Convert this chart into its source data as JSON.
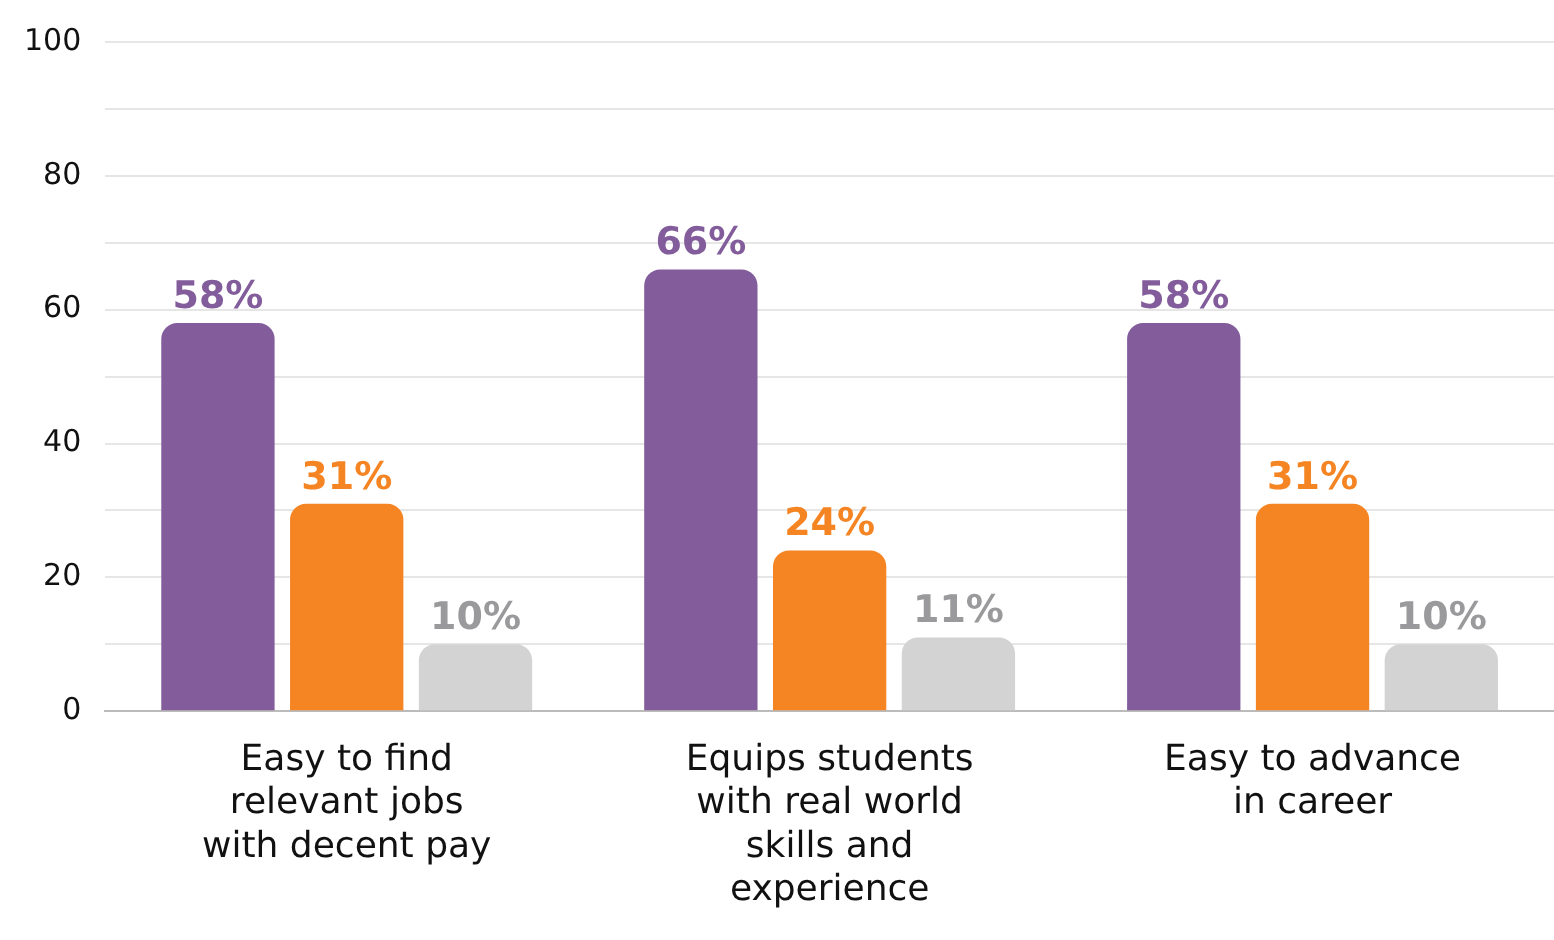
{
  "chart_data": {
    "type": "bar",
    "categories": [
      "Easy to find relevant jobs with decent pay",
      "Equips students with real world skills and experience",
      "Easy to advance in career"
    ],
    "series": [
      {
        "color": "#825c9b",
        "values": [
          58,
          66,
          58
        ],
        "value_labels": [
          "58%",
          "66%",
          "58%"
        ]
      },
      {
        "color": "#f58423",
        "values": [
          31,
          24,
          31
        ],
        "value_labels": [
          "31%",
          "24%",
          "31%"
        ]
      },
      {
        "color": "#d3d3d4",
        "values": [
          10,
          11,
          10
        ],
        "value_labels": [
          "10%",
          "11%",
          "10%"
        ]
      }
    ],
    "ylim": [
      0,
      100
    ],
    "yticks": [
      0,
      {
        "value": 10,
        "label": null
      },
      20,
      {
        "value": 30,
        "label": null
      },
      40,
      {
        "value": 50,
        "label": null
      },
      60,
      {
        "value": 70,
        "label": null
      },
      80,
      {
        "value": 90,
        "label": null
      },
      100
    ],
    "grid": "y",
    "legend": false
  }
}
